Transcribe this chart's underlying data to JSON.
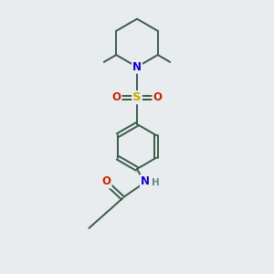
{
  "bg_color": "#e8ecee",
  "bond_color": "#3a5a48",
  "N_color": "#1800cc",
  "S_color": "#ccaa00",
  "O_color": "#cc2200",
  "H_color": "#5a8888",
  "line_width": 1.4,
  "font_size_atom": 8.5,
  "fig_size": [
    3.0,
    3.0
  ],
  "dpi": 100,
  "xlim": [
    0,
    10
  ],
  "ylim": [
    0,
    10
  ]
}
